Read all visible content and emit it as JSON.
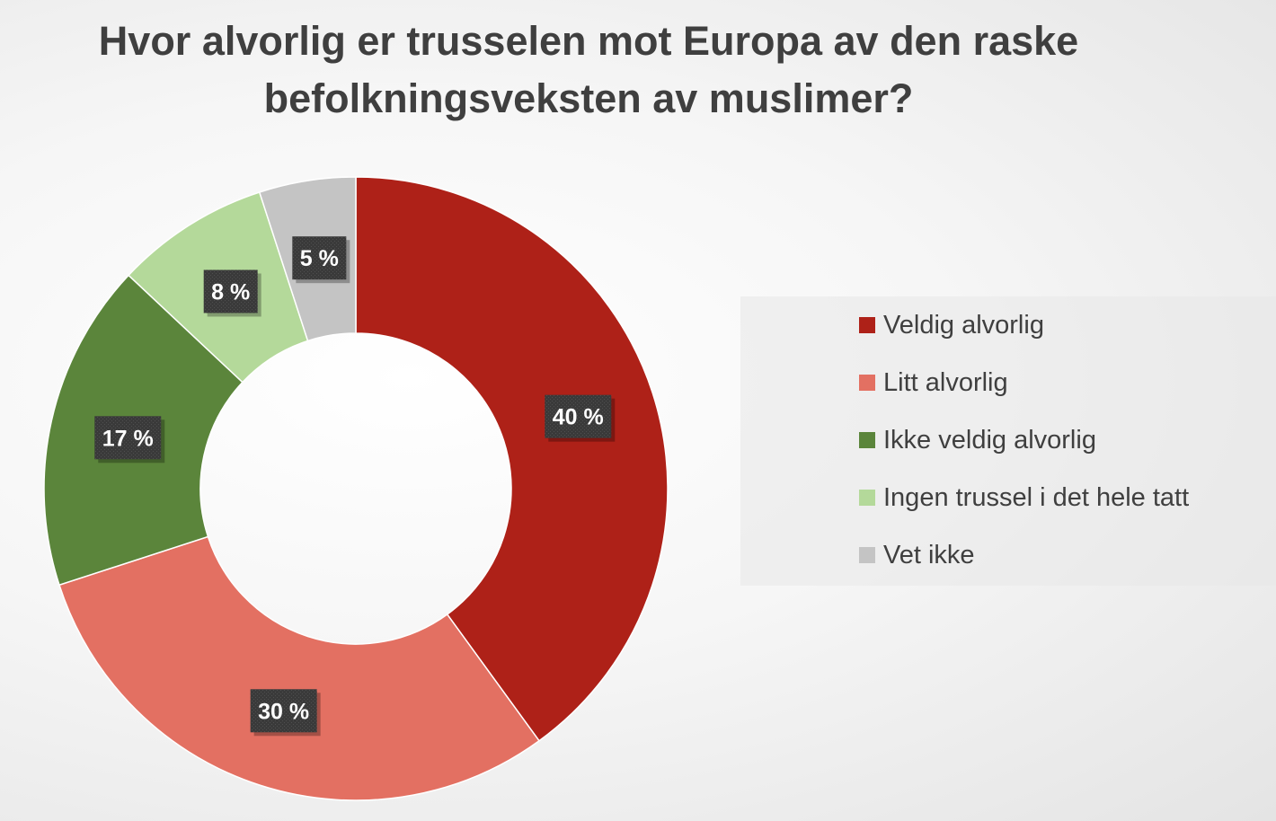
{
  "chart_data": {
    "type": "pie",
    "title_lines": [
      "Hvor alvorlig er trusselen mot Europa av den raske",
      "befolkningsveksten av muslimer?"
    ],
    "categories": [
      "Veldig alvorlig",
      "Litt alvorlig",
      "Ikke veldig alvorlig",
      "Ingen trussel i det hele tatt",
      "Vet ikke"
    ],
    "values": [
      40,
      30,
      17,
      8,
      5
    ],
    "data_labels": [
      "40 %",
      "30 %",
      "17 %",
      "8 %",
      "5 %"
    ],
    "colors": [
      "#ae2118",
      "#e37062",
      "#5b853b",
      "#b4d99a",
      "#c4c4c4"
    ],
    "donut": true,
    "legend_position": "right"
  }
}
